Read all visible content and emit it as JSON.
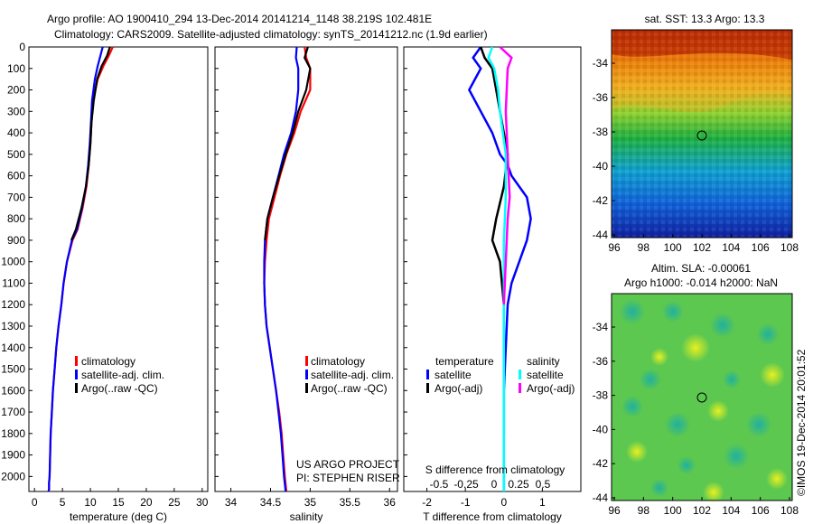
{
  "header": {
    "title_line1": "Argo profile: AO 1900410_294 13-Dec-2014 20141214_1148 38.219S 102.481E",
    "title_line2": "Climatology: CARS2009. Satellite-adjusted climatology: synTS_20141212.nc (1.9d earlier)"
  },
  "colors": {
    "climatology": "#ff0000",
    "satellite": "#0000ff",
    "argo": "#000000",
    "sal_satellite": "#00ffff",
    "sal_argo": "#ff00ff"
  },
  "depth_ticks": [
    0,
    100,
    200,
    300,
    400,
    500,
    600,
    700,
    800,
    900,
    1000,
    1100,
    1200,
    1300,
    1400,
    1500,
    1600,
    1700,
    1800,
    1900,
    2000
  ],
  "chart_data": [
    {
      "type": "line",
      "xlabel": "temperature (deg C)",
      "ylabel": "",
      "xlim": [
        -1,
        31
      ],
      "ylim": [
        2070,
        0
      ],
      "xticks": [
        0,
        5,
        10,
        15,
        20,
        25,
        30
      ],
      "xtick_labels": [
        "0",
        "5",
        "10",
        "15",
        "20",
        "25",
        "30"
      ],
      "legend": [
        "climatology",
        "satellite-adj. clim.",
        "Argo(..raw -QC)"
      ],
      "series": [
        {
          "name": "climatology",
          "x": [
            14.0,
            13.3,
            12.3,
            11.3,
            10.5,
            10.2,
            10.0,
            9.7,
            9.3,
            8.6,
            7.7,
            6.8,
            5.8,
            5.2,
            4.8,
            4.3,
            3.9,
            3.6,
            3.3,
            3.1,
            2.9,
            2.8,
            2.7,
            2.6,
            2.6,
            2.5
          ],
          "y": [
            0,
            40,
            90,
            150,
            250,
            350,
            450,
            550,
            650,
            750,
            850,
            900,
            1000,
            1100,
            1200,
            1300,
            1400,
            1500,
            1600,
            1700,
            1800,
            1900,
            2000,
            2030,
            2060,
            2070
          ]
        },
        {
          "name": "satellite-adj. clim.",
          "x": [
            12.2,
            11.8,
            11.3,
            10.8,
            10.3,
            10.1,
            9.9,
            9.6,
            9.2,
            8.5,
            7.6,
            6.7,
            5.8,
            5.2,
            4.8,
            4.3,
            3.9,
            3.6,
            3.3,
            3.1,
            2.9,
            2.8,
            2.7,
            2.6,
            2.6,
            2.5
          ],
          "y": [
            0,
            40,
            90,
            150,
            250,
            350,
            450,
            550,
            650,
            750,
            850,
            900,
            1000,
            1100,
            1200,
            1300,
            1400,
            1500,
            1600,
            1700,
            1800,
            1900,
            2000,
            2030,
            2060,
            2070
          ]
        },
        {
          "name": "Argo(..raw -QC)",
          "x": [
            13.5,
            13.0,
            12.0,
            11.2,
            10.6,
            10.2,
            10.0,
            9.7,
            9.2,
            8.4,
            7.4,
            6.6
          ],
          "y": [
            0,
            40,
            90,
            150,
            250,
            350,
            450,
            550,
            650,
            750,
            850,
            900
          ]
        }
      ]
    },
    {
      "type": "line",
      "xlabel": "salinity",
      "ylabel": "",
      "xlim": [
        33.8,
        36.1
      ],
      "ylim": [
        2070,
        0
      ],
      "xticks": [
        34,
        34.5,
        35,
        35.5,
        36
      ],
      "xtick_labels": [
        "34",
        "34.5",
        "35",
        "35.5",
        "36"
      ],
      "legend": [
        "climatology",
        "satellite-adj. clim.",
        "Argo(..raw -QC)"
      ],
      "annotation": [
        "US ARGO PROJECT",
        "PI: STEPHEN RISER"
      ],
      "series": [
        {
          "name": "climatology",
          "x": [
            34.93,
            34.95,
            35.0,
            35.0,
            34.88,
            34.8,
            34.7,
            34.62,
            34.55,
            34.48,
            34.45,
            34.43,
            34.42,
            34.43,
            34.45,
            34.49,
            34.53,
            34.57,
            34.61,
            34.64,
            34.66,
            34.68,
            34.7
          ],
          "y": [
            0,
            50,
            100,
            200,
            300,
            400,
            500,
            600,
            700,
            800,
            900,
            1000,
            1100,
            1200,
            1300,
            1400,
            1500,
            1600,
            1700,
            1800,
            1900,
            2000,
            2070
          ]
        },
        {
          "name": "satellite-adj. clim.",
          "x": [
            34.83,
            34.82,
            34.85,
            34.85,
            34.82,
            34.76,
            34.67,
            34.6,
            34.53,
            34.46,
            34.43,
            34.42,
            34.42,
            34.43,
            34.45,
            34.49,
            34.53,
            34.57,
            34.6,
            34.63,
            34.65,
            34.67,
            34.69
          ],
          "y": [
            0,
            50,
            100,
            200,
            300,
            400,
            500,
            600,
            700,
            800,
            900,
            1000,
            1100,
            1200,
            1300,
            1400,
            1500,
            1600,
            1700,
            1800,
            1900,
            2000,
            2070
          ]
        },
        {
          "name": "Argo(..raw -QC)",
          "x": [
            34.97,
            34.93,
            35.0,
            34.95,
            34.85,
            34.78,
            34.69,
            34.61,
            34.53,
            34.46,
            34.43
          ],
          "y": [
            0,
            50,
            100,
            200,
            300,
            400,
            500,
            600,
            700,
            800,
            900
          ]
        }
      ]
    },
    {
      "type": "line",
      "xlabel": "T difference from climatology",
      "xlabel_top": "S difference from climatology",
      "xlim": [
        -2.6,
        2.0
      ],
      "ylim": [
        2070,
        0
      ],
      "xticks": [
        -2,
        -1,
        0,
        1
      ],
      "xtick_labels": [
        "-2",
        "-1",
        "0",
        "1"
      ],
      "top_ticks": [
        "-0.5",
        "-0.25",
        "0",
        "0.25",
        "0.5"
      ],
      "legend_left_title": "temperature",
      "legend_right_title": "salinity",
      "legend": [
        "satellite",
        "Argo(-adj)",
        "satellite",
        "Argo(-adj)"
      ],
      "series": [
        {
          "name": "satellite",
          "x": [
            -0.6,
            -0.8,
            -0.6,
            -0.9,
            -0.6,
            -0.3,
            -0.1,
            0.1,
            0.2,
            0.4,
            0.6,
            0.7,
            0.6,
            0.4,
            0.2,
            0.1,
            0.05,
            0.0,
            0.0,
            0.0,
            0.0
          ],
          "y": [
            0,
            50,
            100,
            200,
            300,
            400,
            500,
            550,
            600,
            650,
            700,
            800,
            900,
            1000,
            1100,
            1200,
            1400,
            1600,
            1800,
            2000,
            2070
          ]
        },
        {
          "name": "Argo(-adj)",
          "x": [
            -0.6,
            -0.5,
            -0.3,
            -0.2,
            -0.1,
            0.0,
            0.1,
            0.0,
            -0.2,
            -0.3,
            -0.1,
            0.0,
            0.0,
            0.0
          ],
          "y": [
            0,
            50,
            100,
            200,
            300,
            400,
            500,
            650,
            800,
            900,
            1000,
            1200,
            1500,
            1800
          ]
        },
        {
          "name": "satellite",
          "x": [
            -0.3,
            -0.4,
            -0.25,
            -0.15,
            -0.1,
            0.05,
            0.05,
            0.0,
            0.0,
            0.0,
            0.0
          ],
          "y": [
            0,
            50,
            100,
            200,
            300,
            500,
            700,
            900,
            1200,
            1600,
            2070
          ]
        },
        {
          "name": "Argo(-adj)",
          "x": [
            -0.1,
            0.2,
            0.1,
            0.05,
            0.1,
            0.15,
            0.1,
            0.05,
            0.0
          ],
          "y": [
            0,
            50,
            100,
            300,
            500,
            700,
            800,
            1000,
            1200
          ]
        }
      ]
    }
  ],
  "maps": {
    "sst": {
      "title": "sat. SST: 13.3 Argo: 13.3",
      "xticks": [
        "96",
        "98",
        "100",
        "102",
        "104",
        "106",
        "108"
      ],
      "yticks": [
        "-34",
        "-36",
        "-38",
        "-40",
        "-42",
        "-44"
      ]
    },
    "sla": {
      "title_line1": "Altim. SLA: -0.00061",
      "title_line2": "Argo h1000: -0.014 h2000: NaN",
      "xticks": [
        "96",
        "98",
        "100",
        "102",
        "104",
        "106",
        "108"
      ],
      "yticks": [
        "-34",
        "-36",
        "-38",
        "-40",
        "-42",
        "-44"
      ]
    }
  },
  "credit": "©IMOS 19-Dec-2014 20:01:52"
}
